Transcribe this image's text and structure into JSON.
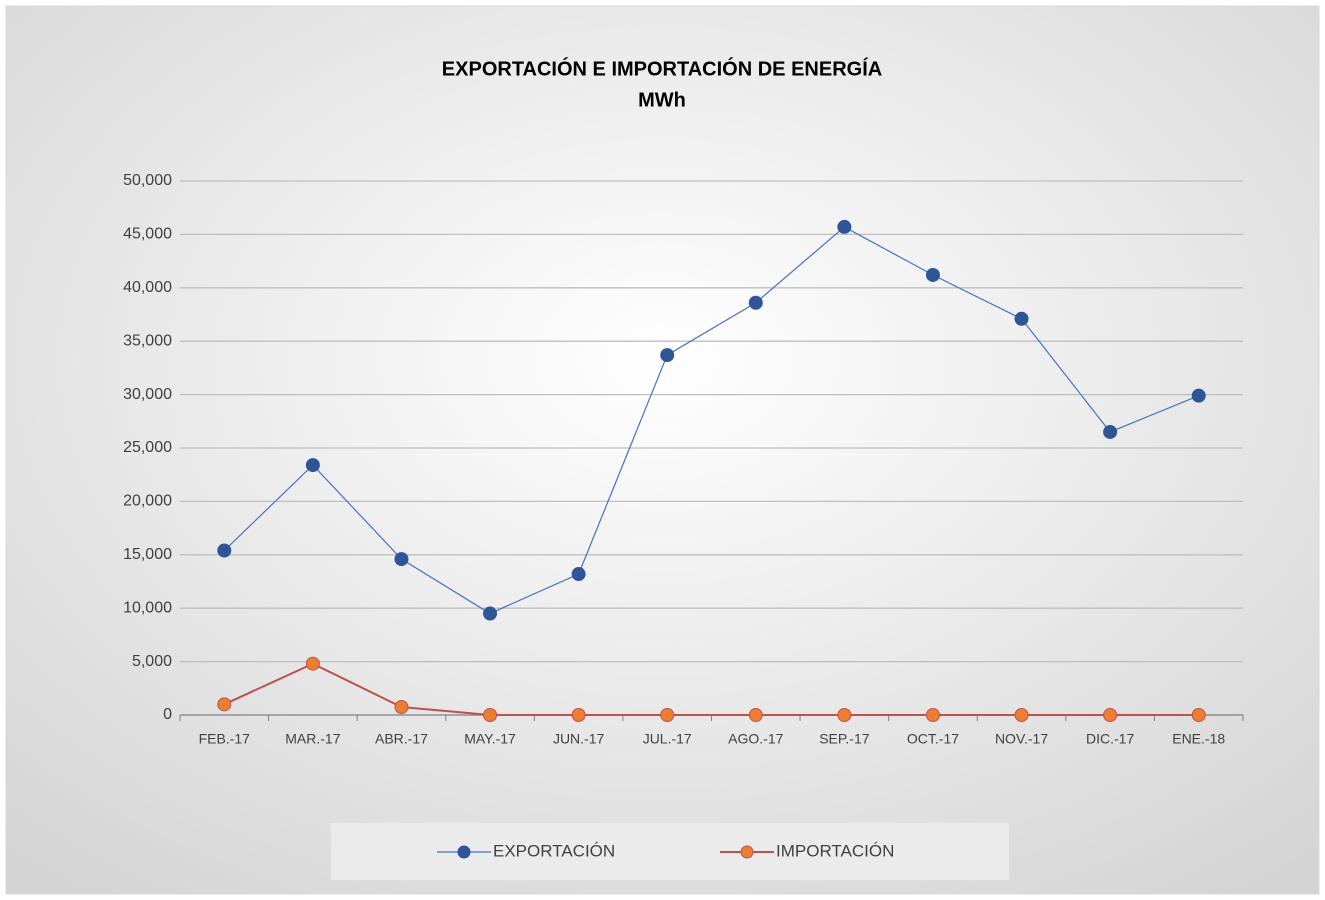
{
  "chart_data": {
    "type": "line",
    "title": "EXPORTACIÓN E IMPORTACIÓN DE ENERGÍA",
    "subtitle": "MWh",
    "categories": [
      "FEB.-17",
      "MAR.-17",
      "ABR.-17",
      "MAY.-17",
      "JUN.-17",
      "JUL.-17",
      "AGO.-17",
      "SEP.-17",
      "OCT.-17",
      "NOV.-17",
      "DIC.-17",
      "ENE.-18"
    ],
    "series": [
      {
        "name": "EXPORTACIÓN",
        "color": "#4472c4",
        "marker_color": "#2f5597",
        "values": [
          15400,
          23400,
          14600,
          9500,
          13200,
          33700,
          38600,
          45700,
          41200,
          37100,
          26500,
          29900
        ]
      },
      {
        "name": "IMPORTACIÓN",
        "color": "#c0504d",
        "marker_color": "#ed7d31",
        "values": [
          1000,
          4800,
          750,
          0,
          0,
          0,
          0,
          0,
          0,
          0,
          0,
          0
        ]
      }
    ],
    "ylim": [
      0,
      50000
    ],
    "yticks": [
      0,
      {
        "value": 5000,
        "label": "5,000"
      },
      {
        "value": 10000,
        "label": "10,000"
      },
      {
        "value": 15000,
        "label": "15,000"
      },
      {
        "value": 20000,
        "label": "20,000"
      },
      {
        "value": 25000,
        "label": "25,000"
      },
      {
        "value": 30000,
        "label": "30,000"
      },
      {
        "value": 35000,
        "label": "35,000"
      },
      {
        "value": 40000,
        "label": "40,000"
      },
      {
        "value": 45000,
        "label": "45,000"
      },
      {
        "value": 50000,
        "label": "50,000"
      }
    ],
    "grid": true,
    "legend": "bottom"
  }
}
